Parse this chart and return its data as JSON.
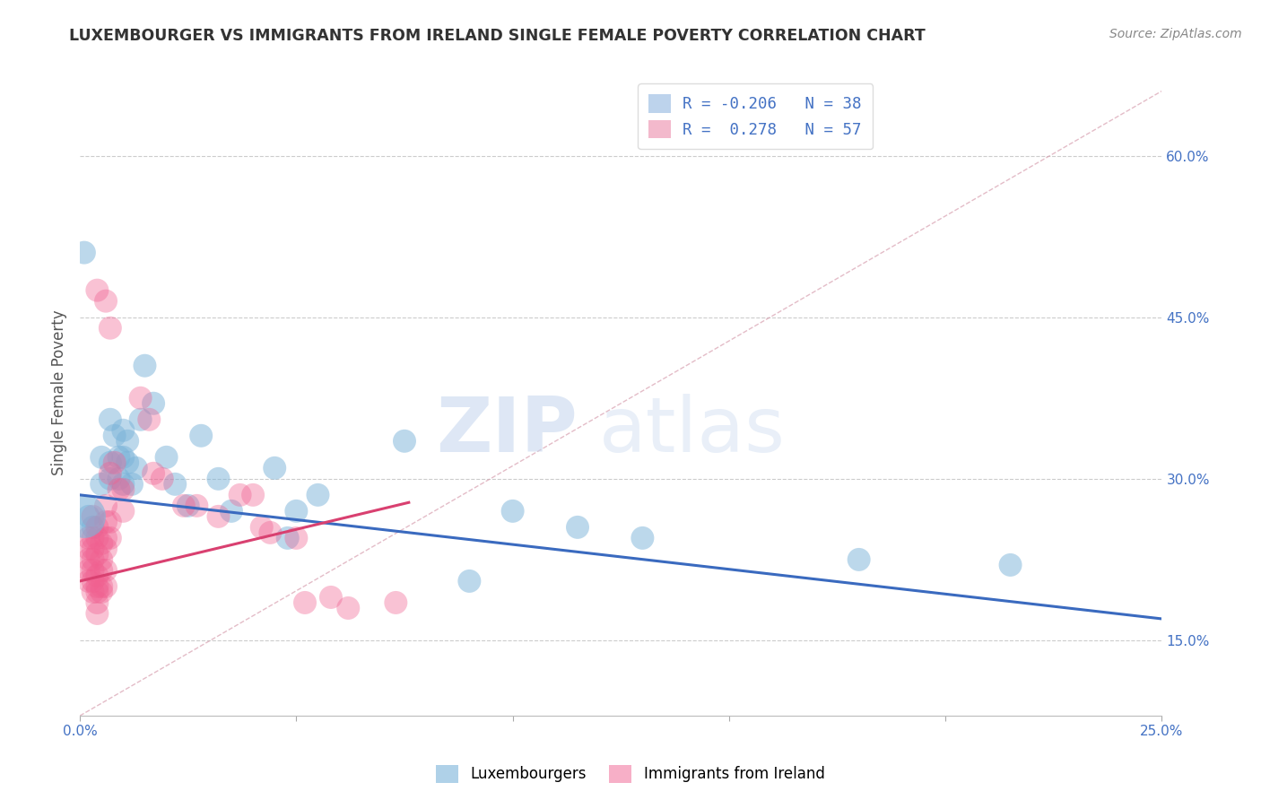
{
  "title": "LUXEMBOURGER VS IMMIGRANTS FROM IRELAND SINGLE FEMALE POVERTY CORRELATION CHART",
  "source": "Source: ZipAtlas.com",
  "ylabel": "Single Female Poverty",
  "xlim": [
    0.0,
    0.25
  ],
  "ylim": [
    0.08,
    0.68
  ],
  "x_ticks": [
    0.0,
    0.05,
    0.1,
    0.15,
    0.2,
    0.25
  ],
  "x_tick_labels": [
    "0.0%",
    "",
    "",
    "",
    "",
    "25.0%"
  ],
  "y_ticks_right": [
    0.15,
    0.3,
    0.45,
    0.6
  ],
  "y_tick_labels_right": [
    "15.0%",
    "30.0%",
    "45.0%",
    "60.0%"
  ],
  "legend_label_blue": "R = -0.206   N = 38",
  "legend_label_pink": "R =  0.278   N = 57",
  "blue_color": "#7ab3d9",
  "pink_color": "#f06090",
  "blue_scatter": [
    [
      0.001,
      0.51
    ],
    [
      0.015,
      0.405
    ],
    [
      0.005,
      0.295
    ],
    [
      0.005,
      0.32
    ],
    [
      0.007,
      0.355
    ],
    [
      0.007,
      0.315
    ],
    [
      0.007,
      0.3
    ],
    [
      0.008,
      0.34
    ],
    [
      0.009,
      0.32
    ],
    [
      0.009,
      0.3
    ],
    [
      0.01,
      0.345
    ],
    [
      0.01,
      0.32
    ],
    [
      0.01,
      0.295
    ],
    [
      0.011,
      0.335
    ],
    [
      0.011,
      0.315
    ],
    [
      0.012,
      0.295
    ],
    [
      0.013,
      0.31
    ],
    [
      0.014,
      0.355
    ],
    [
      0.017,
      0.37
    ],
    [
      0.02,
      0.32
    ],
    [
      0.022,
      0.295
    ],
    [
      0.025,
      0.275
    ],
    [
      0.028,
      0.34
    ],
    [
      0.032,
      0.3
    ],
    [
      0.035,
      0.27
    ],
    [
      0.045,
      0.31
    ],
    [
      0.05,
      0.27
    ],
    [
      0.055,
      0.285
    ],
    [
      0.075,
      0.335
    ],
    [
      0.1,
      0.27
    ],
    [
      0.115,
      0.255
    ],
    [
      0.13,
      0.245
    ],
    [
      0.18,
      0.225
    ],
    [
      0.215,
      0.22
    ],
    [
      0.048,
      0.245
    ],
    [
      0.09,
      0.205
    ],
    [
      0.002,
      0.265
    ],
    [
      0.003,
      0.255
    ]
  ],
  "pink_scatter": [
    [
      0.002,
      0.245
    ],
    [
      0.002,
      0.235
    ],
    [
      0.002,
      0.225
    ],
    [
      0.002,
      0.215
    ],
    [
      0.002,
      0.205
    ],
    [
      0.003,
      0.265
    ],
    [
      0.003,
      0.245
    ],
    [
      0.003,
      0.235
    ],
    [
      0.003,
      0.225
    ],
    [
      0.003,
      0.215
    ],
    [
      0.003,
      0.205
    ],
    [
      0.003,
      0.195
    ],
    [
      0.004,
      0.255
    ],
    [
      0.004,
      0.245
    ],
    [
      0.004,
      0.23
    ],
    [
      0.004,
      0.21
    ],
    [
      0.004,
      0.2
    ],
    [
      0.004,
      0.195
    ],
    [
      0.004,
      0.185
    ],
    [
      0.004,
      0.175
    ],
    [
      0.005,
      0.24
    ],
    [
      0.005,
      0.225
    ],
    [
      0.005,
      0.215
    ],
    [
      0.005,
      0.2
    ],
    [
      0.005,
      0.195
    ],
    [
      0.006,
      0.275
    ],
    [
      0.006,
      0.26
    ],
    [
      0.006,
      0.245
    ],
    [
      0.006,
      0.235
    ],
    [
      0.006,
      0.215
    ],
    [
      0.006,
      0.2
    ],
    [
      0.007,
      0.305
    ],
    [
      0.007,
      0.26
    ],
    [
      0.007,
      0.245
    ],
    [
      0.008,
      0.315
    ],
    [
      0.009,
      0.29
    ],
    [
      0.01,
      0.29
    ],
    [
      0.01,
      0.27
    ],
    [
      0.014,
      0.375
    ],
    [
      0.016,
      0.355
    ],
    [
      0.017,
      0.305
    ],
    [
      0.019,
      0.3
    ],
    [
      0.024,
      0.275
    ],
    [
      0.027,
      0.275
    ],
    [
      0.032,
      0.265
    ],
    [
      0.037,
      0.285
    ],
    [
      0.04,
      0.285
    ],
    [
      0.042,
      0.255
    ],
    [
      0.044,
      0.25
    ],
    [
      0.05,
      0.245
    ],
    [
      0.052,
      0.185
    ],
    [
      0.058,
      0.19
    ],
    [
      0.062,
      0.18
    ],
    [
      0.073,
      0.185
    ],
    [
      0.004,
      0.475
    ],
    [
      0.006,
      0.465
    ],
    [
      0.007,
      0.44
    ]
  ],
  "blue_line_x": [
    0.0,
    0.25
  ],
  "blue_line_y": [
    0.285,
    0.17
  ],
  "pink_line_x": [
    0.0,
    0.076
  ],
  "pink_line_y": [
    0.205,
    0.278
  ],
  "diag_line_x": [
    0.0,
    0.25
  ],
  "diag_line_y": [
    0.08,
    0.66
  ],
  "watermark_zip": "ZIP",
  "watermark_atlas": "atlas",
  "background_color": "#ffffff",
  "grid_color": "#cccccc",
  "title_color": "#333333",
  "axis_color": "#4472c4",
  "source_color": "#888888"
}
